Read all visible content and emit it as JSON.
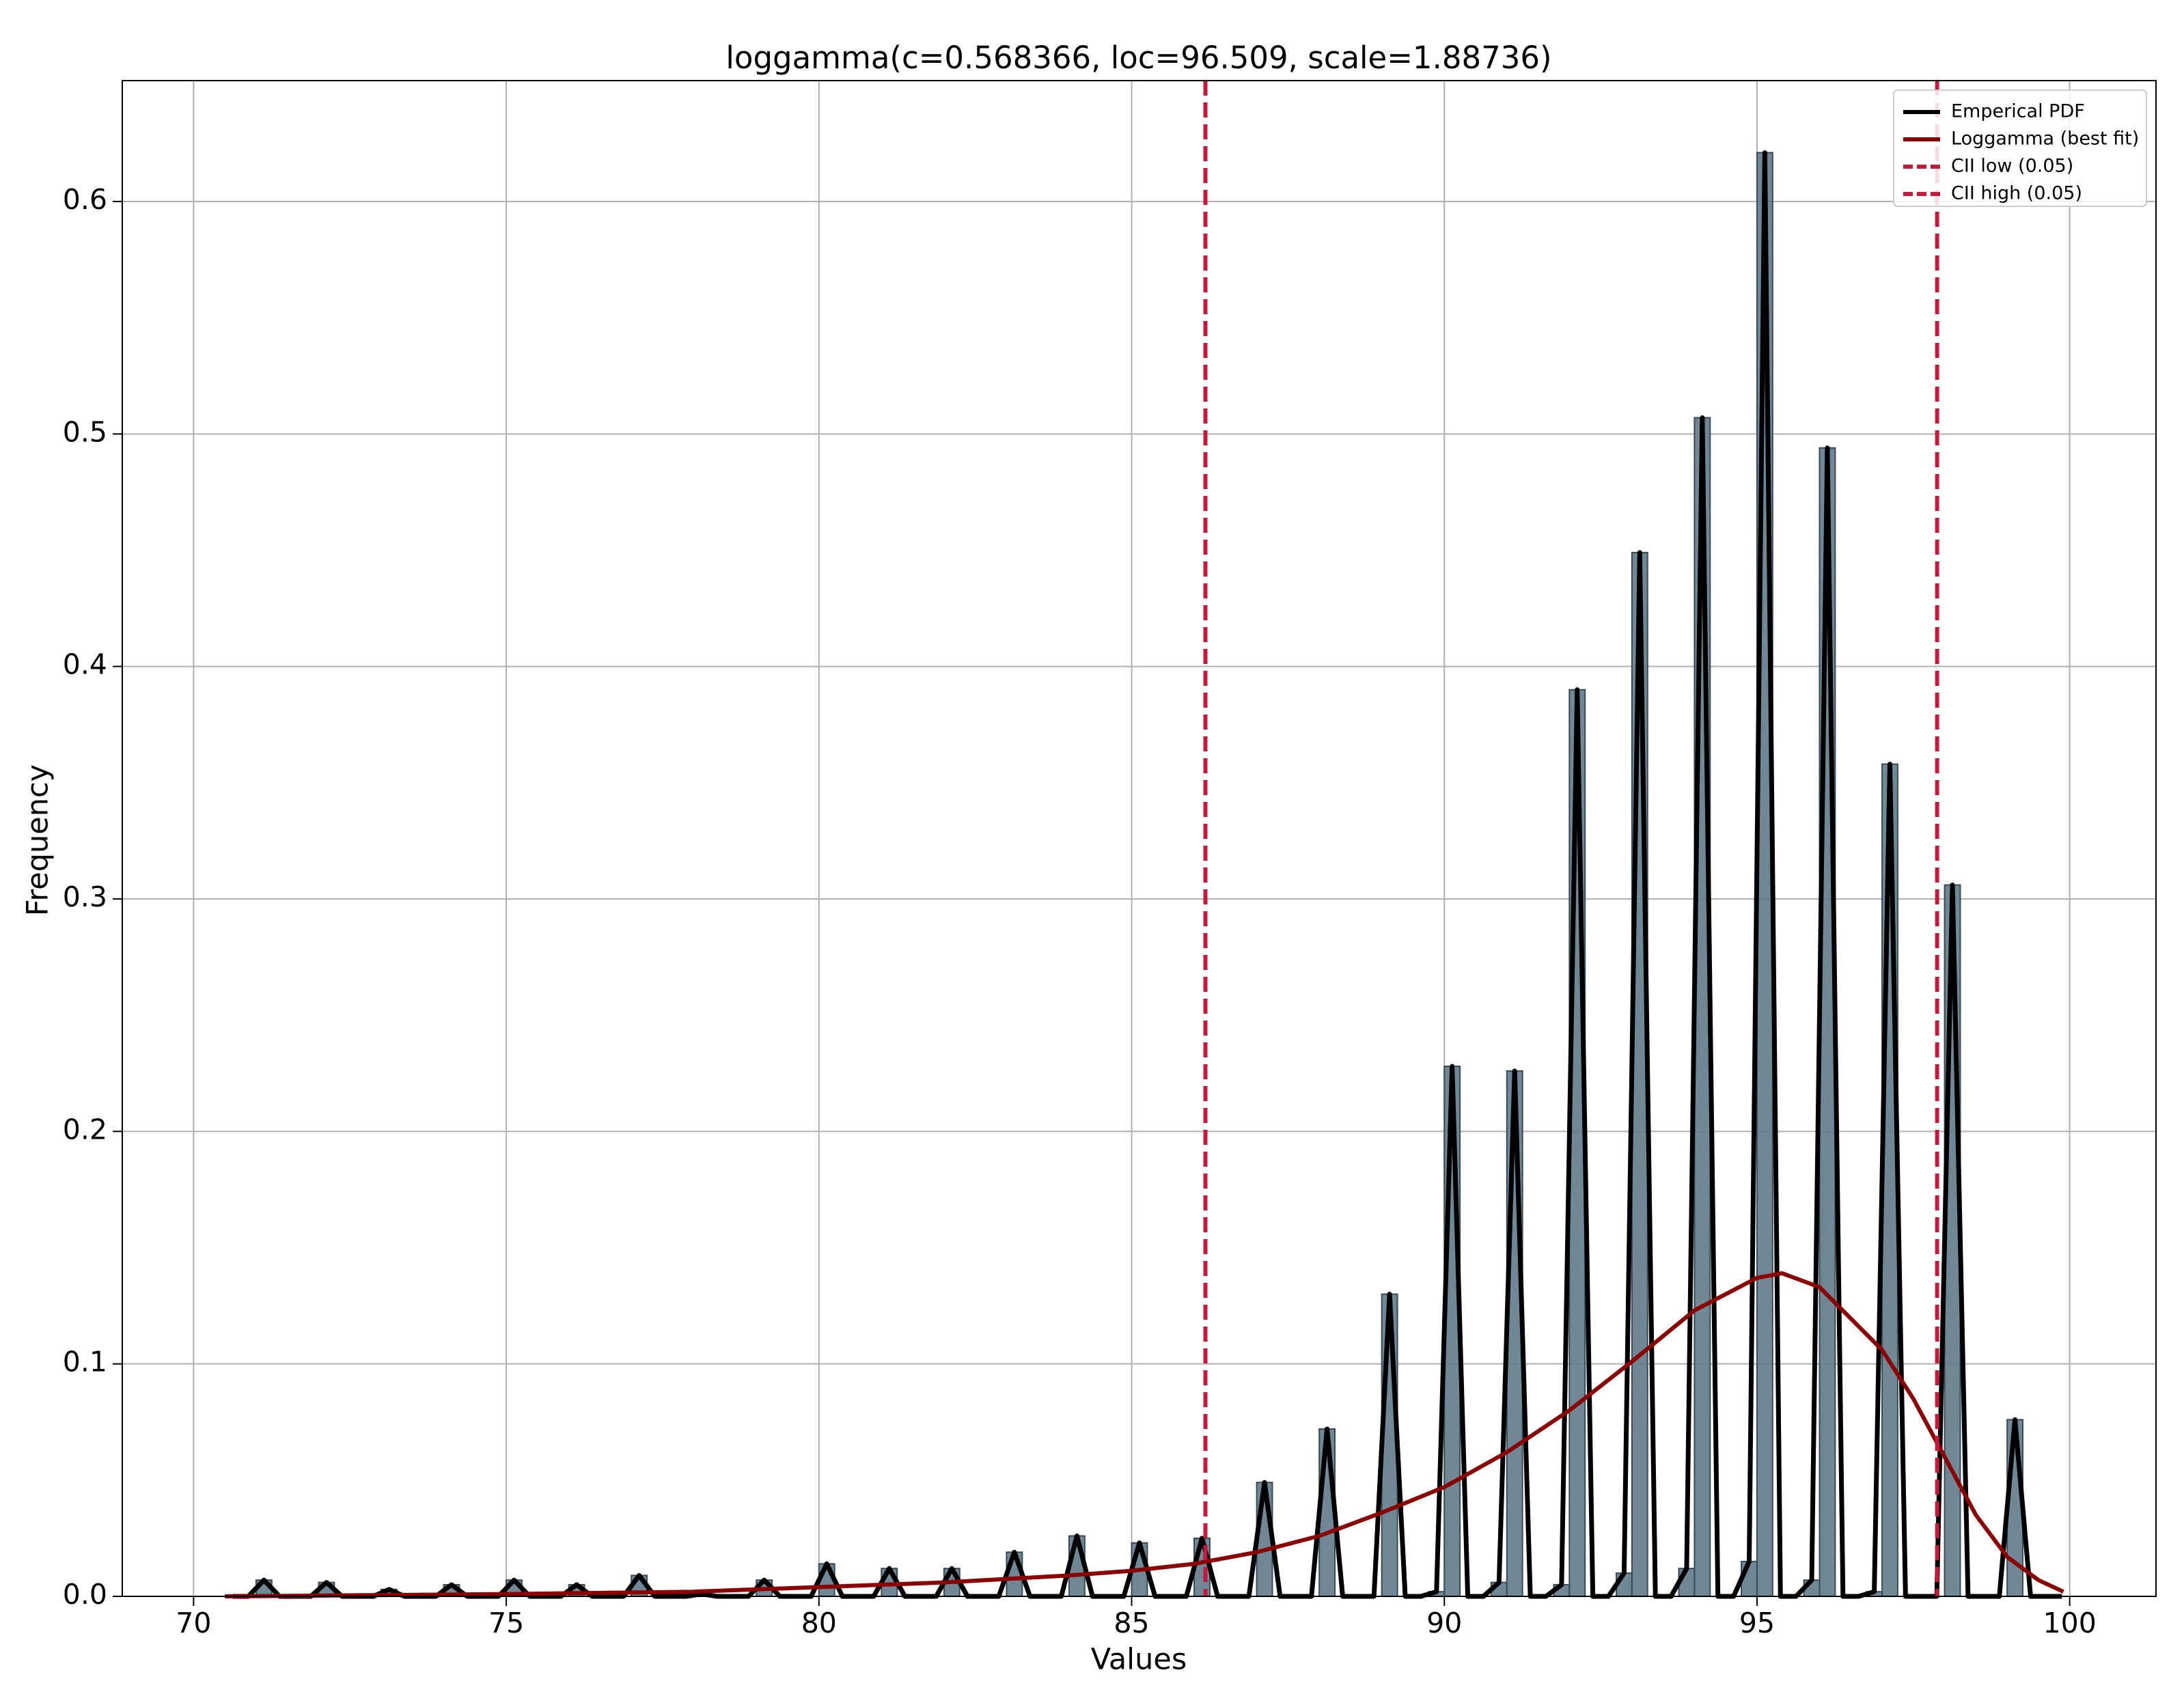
{
  "chart_data": {
    "type": "histogram",
    "title": "loggamma(c=0.568366, loc=96.509, scale=1.88736)",
    "x_label": "Values",
    "y_label": "Frequency",
    "bins": [
      70.5,
      70.75,
      71,
      71.25,
      71.5,
      71.75,
      72,
      72.25,
      72.5,
      72.75,
      73,
      73.25,
      73.5,
      73.75,
      74,
      74.25,
      74.5,
      74.75,
      75,
      75.25,
      75.5,
      75.75,
      76,
      76.25,
      76.5,
      76.75,
      77,
      77.25,
      77.5,
      77.75,
      78,
      78.25,
      78.5,
      78.75,
      79,
      79.25,
      79.5,
      79.75,
      80,
      80.25,
      80.5,
      80.75,
      81,
      81.25,
      81.5,
      81.75,
      82,
      82.25,
      82.5,
      82.75,
      83,
      83.25,
      83.5,
      83.75,
      84,
      84.25,
      84.5,
      84.75,
      85,
      85.25,
      85.5,
      85.75,
      86,
      86.25,
      86.5,
      86.75,
      87,
      87.25,
      87.5,
      87.75,
      88,
      88.25,
      88.5,
      88.75,
      89,
      89.25,
      89.5,
      89.75,
      90,
      90.25,
      90.5,
      90.75,
      91,
      91.25,
      91.5,
      91.75,
      92,
      92.25,
      92.5,
      92.75,
      93,
      93.25,
      93.5,
      93.75,
      94,
      94.25,
      94.5,
      94.75,
      95,
      95.25,
      95.5,
      95.75,
      96,
      96.25,
      96.5,
      96.75,
      97,
      97.25,
      97.5,
      97.75,
      98,
      98.25,
      98.5,
      98.75,
      99,
      99.25,
      99.5,
      99.75,
      100
    ],
    "counts": [
      0,
      0,
      0.007,
      0,
      0,
      0,
      0.006,
      0,
      0,
      0,
      0.003,
      0,
      0,
      0,
      0.005,
      0,
      0,
      0,
      0.007,
      0,
      0,
      0,
      0.005,
      0,
      0,
      0,
      0.009,
      0,
      0,
      0,
      0.001,
      0,
      0,
      0,
      0.007,
      0,
      0,
      0,
      0.014,
      0,
      0,
      0,
      0.012,
      0,
      0,
      0,
      0.012,
      0,
      0,
      0,
      0.019,
      0,
      0,
      0,
      0.026,
      0,
      0,
      0,
      0.023,
      0,
      0,
      0,
      0.025,
      0,
      0,
      0,
      0.049,
      0,
      0,
      0,
      0.072,
      0,
      0,
      0,
      0.13,
      0,
      0,
      0.002,
      0.228,
      0,
      0,
      0.006,
      0.226,
      0,
      0,
      0.005,
      0.39,
      0,
      0,
      0.01,
      0.449,
      0,
      0,
      0.012,
      0.507,
      0,
      0,
      0.015,
      0.621,
      0,
      0,
      0.007,
      0.494,
      0,
      0,
      0.002,
      0.358,
      0,
      0,
      0,
      0.306,
      0,
      0,
      0,
      0.076,
      0,
      0,
      0
    ],
    "bar_color": "#607b8b",
    "series": [
      {
        "name": "Emperical PDF",
        "color": "#000000"
      },
      {
        "name": "Loggamma (best fit)",
        "color": "#8b0000",
        "x": [
          70.5,
          75,
          78,
          80,
          82,
          84,
          85,
          86,
          87,
          88,
          89,
          90,
          91,
          92,
          93,
          94,
          95,
          95.4,
          96,
          97,
          97.5,
          98,
          98.5,
          99,
          99.5,
          99.9
        ],
        "values": [
          0,
          0.001,
          0.002,
          0.004,
          0.006,
          0.009,
          0.011,
          0.014,
          0.019,
          0.026,
          0.036,
          0.047,
          0.062,
          0.08,
          0.101,
          0.123,
          0.137,
          0.139,
          0.133,
          0.106,
          0.085,
          0.06,
          0.035,
          0.017,
          0.007,
          0.002
        ]
      },
      {
        "name": "CII low (0.05)",
        "color": "#c8193c",
        "x": 86.18
      },
      {
        "name": "CII high (0.05)",
        "color": "#c8193c",
        "x": 97.88
      }
    ],
    "xlim": [
      68.86,
      101.38
    ],
    "xticks": [
      70,
      75,
      80,
      85,
      90,
      95,
      100
    ],
    "ylim": [
      0,
      0.652
    ],
    "yticks": [
      {
        "value": 0,
        "label": "0.0"
      },
      0.1,
      0.2,
      0.3,
      0.4,
      0.5,
      0.6
    ],
    "grid": true,
    "legend": "upper right"
  }
}
